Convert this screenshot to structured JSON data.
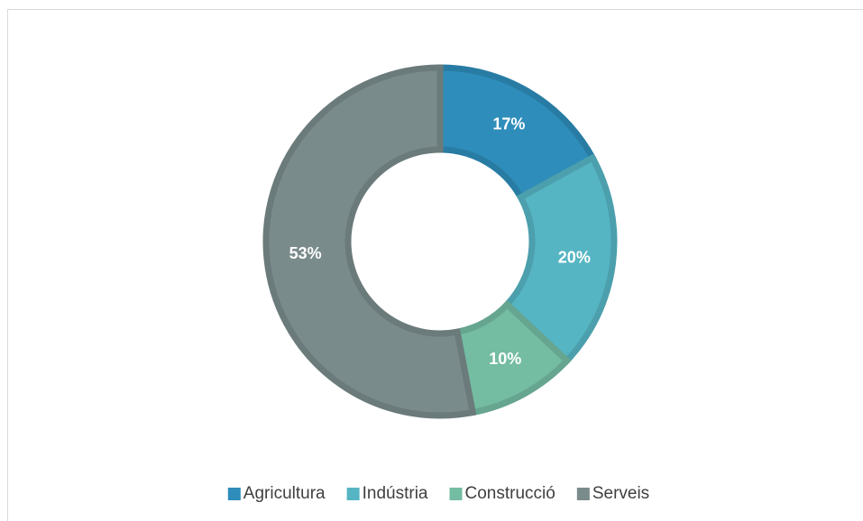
{
  "chart_data": {
    "type": "donut",
    "categories": [
      "Agricultura",
      "Indústria",
      "Construcció",
      "Serveis"
    ],
    "values": [
      17,
      20,
      10,
      53
    ],
    "value_labels": [
      "17%",
      "20%",
      "10%",
      "53%"
    ],
    "colors": [
      "#2e8dba",
      "#56b5c3",
      "#74bca2",
      "#7a8b8b"
    ],
    "legend": "bottom"
  }
}
